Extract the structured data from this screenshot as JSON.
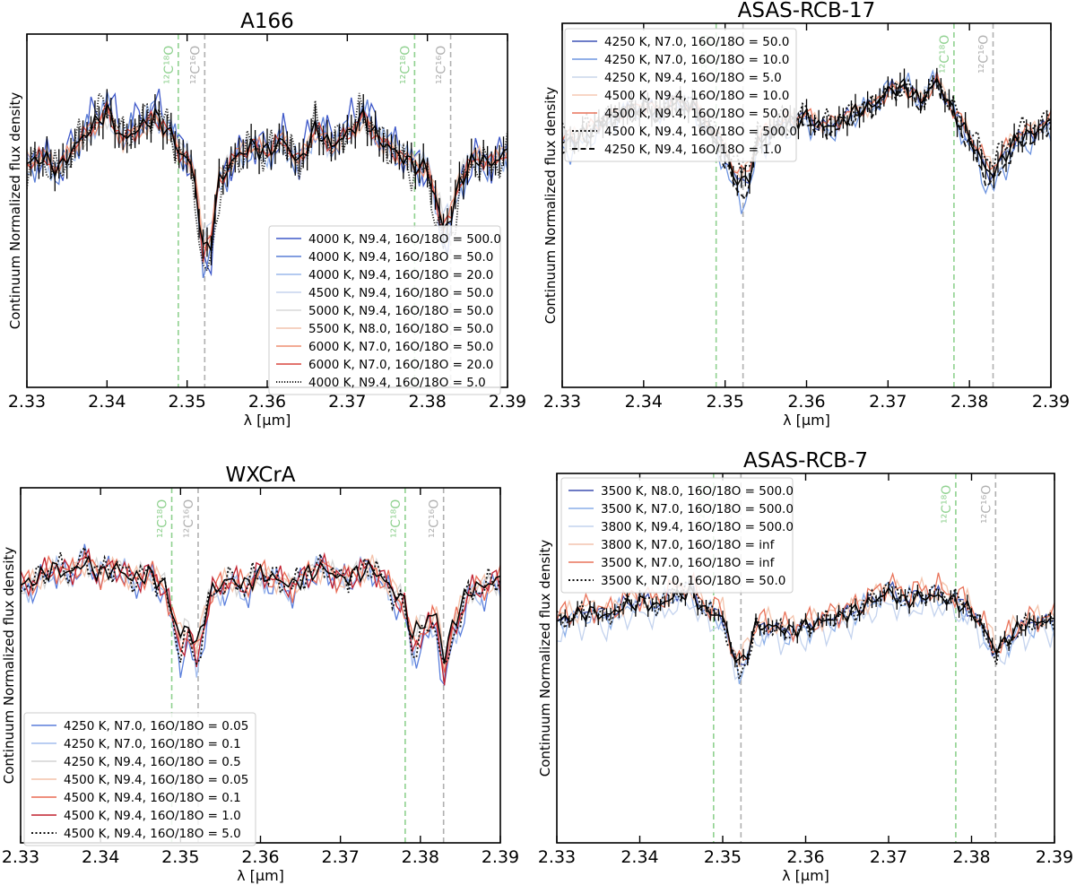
{
  "chart_data": [
    {
      "type": "line",
      "title": "A166",
      "xlabel": "λ [µm]",
      "ylabel": "Continuum Normalized flux density",
      "xlim": [
        2.33,
        2.39
      ],
      "xticks": [
        "2.33",
        "2.34",
        "2.35",
        "2.36",
        "2.37",
        "2.38",
        "2.39"
      ],
      "legend_position": "lower right",
      "line_markers": [
        {
          "label": "¹²C¹⁸O",
          "x": 2.3489,
          "color": "#8fd18f"
        },
        {
          "label": "¹²C¹⁶O",
          "x": 2.3522,
          "color": "#b0b0b0"
        },
        {
          "label": "¹²C¹⁸O",
          "x": 2.3784,
          "color": "#8fd18f"
        },
        {
          "label": "¹²C¹⁶O",
          "x": 2.3829,
          "color": "#b0b0b0"
        }
      ],
      "observed": {
        "x": [
          2.33,
          2.332,
          2.334,
          2.336,
          2.338,
          2.34,
          2.342,
          2.344,
          2.346,
          2.348,
          2.349,
          2.35,
          2.351,
          2.352,
          2.353,
          2.354,
          2.356,
          2.358,
          2.36,
          2.362,
          2.364,
          2.366,
          2.368,
          2.37,
          2.372,
          2.374,
          2.376,
          2.378,
          2.38,
          2.382,
          2.383,
          2.384,
          2.386,
          2.388,
          2.39
        ],
        "y": [
          0.93,
          0.94,
          0.92,
          0.96,
          0.99,
          1.02,
          0.97,
          0.99,
          1.01,
          0.98,
          0.95,
          0.94,
          0.9,
          0.78,
          0.8,
          0.9,
          0.94,
          0.96,
          0.95,
          0.97,
          0.93,
          0.99,
          0.96,
          0.98,
          1.01,
          0.97,
          0.95,
          0.93,
          0.92,
          0.82,
          0.84,
          0.9,
          0.94,
          0.93,
          0.95
        ],
        "yerr": 0.025
      },
      "series": [
        {
          "name": "4000 K, N9.4, 16O/18O = 500.0",
          "color": "#3e58c9",
          "dash": "solid",
          "offset": 0.01,
          "depth": 1.2,
          "jitter": 0.04,
          "phase": 1
        },
        {
          "name": "4000 K, N9.4, 16O/18O = 50.0",
          "color": "#5a7ed6",
          "dash": "solid",
          "offset": 0.0,
          "depth": 1.1,
          "jitter": 0.035,
          "phase": 2
        },
        {
          "name": "4000 K, N9.4, 16O/18O = 20.0",
          "color": "#9bb8ec",
          "dash": "solid",
          "offset": 0.0,
          "depth": 1.0,
          "jitter": 0.03,
          "phase": 3
        },
        {
          "name": "4500 K, N9.4, 16O/18O = 50.0",
          "color": "#c5d4ee",
          "dash": "solid",
          "offset": 0.0,
          "depth": 0.9,
          "jitter": 0.025,
          "phase": 4
        },
        {
          "name": "5000 K, N9.4, 16O/18O = 50.0",
          "color": "#d9d9d9",
          "dash": "solid",
          "offset": 0.0,
          "depth": 0.9,
          "jitter": 0.025,
          "phase": 5
        },
        {
          "name": "5500 K, N8.0, 16O/18O = 50.0",
          "color": "#f2c3ad",
          "dash": "solid",
          "offset": 0.0,
          "depth": 0.9,
          "jitter": 0.02,
          "phase": 6
        },
        {
          "name": "6000 K, N7.0, 16O/18O = 50.0",
          "color": "#ee8f72",
          "dash": "solid",
          "offset": 0.0,
          "depth": 0.95,
          "jitter": 0.02,
          "phase": 7
        },
        {
          "name": "6000 K, N7.0, 16O/18O = 20.0",
          "color": "#d9473e",
          "dash": "solid",
          "offset": 0.0,
          "depth": 1.0,
          "jitter": 0.02,
          "phase": 8
        },
        {
          "name": "4000 K, N9.4, 16O/18O = 5.0",
          "color": "#222222",
          "dash": "dotted-fine",
          "offset": 0.0,
          "depth": 1.25,
          "jitter": 0.04,
          "phase": 9
        }
      ]
    },
    {
      "type": "line",
      "title": "ASAS-RCB-17",
      "xlabel": "λ [µm]",
      "ylabel": "Continuum Normalized flux density",
      "xlim": [
        2.33,
        2.39
      ],
      "xticks": [
        "2.33",
        "2.34",
        "2.35",
        "2.36",
        "2.37",
        "2.38",
        "2.39"
      ],
      "legend_position": "upper left",
      "line_markers": [
        {
          "label": "¹²C¹⁸O",
          "x": 2.3489,
          "color": "#8fd18f"
        },
        {
          "label": "¹²C¹⁶O",
          "x": 2.3522,
          "color": "#b0b0b0"
        },
        {
          "label": "¹²C¹⁸O",
          "x": 2.3781,
          "color": "#8fd18f"
        },
        {
          "label": "¹²C¹⁶O",
          "x": 2.3829,
          "color": "#b0b0b0"
        }
      ],
      "observed": {
        "x": [
          2.33,
          2.332,
          2.334,
          2.336,
          2.338,
          2.34,
          2.342,
          2.344,
          2.346,
          2.348,
          2.35,
          2.351,
          2.352,
          2.353,
          2.354,
          2.356,
          2.358,
          2.36,
          2.362,
          2.364,
          2.366,
          2.368,
          2.37,
          2.372,
          2.374,
          2.376,
          2.378,
          2.38,
          2.382,
          2.383,
          2.384,
          2.386,
          2.388,
          2.39
        ],
        "y": [
          0.92,
          0.93,
          0.95,
          0.97,
          0.98,
          0.99,
          0.98,
          1.0,
          0.99,
          0.95,
          0.9,
          0.86,
          0.84,
          0.86,
          0.92,
          0.95,
          0.96,
          0.97,
          0.95,
          0.96,
          0.98,
          0.99,
          1.02,
          1.03,
          1.0,
          1.04,
          0.98,
          0.93,
          0.87,
          0.86,
          0.89,
          0.93,
          0.94,
          0.96
        ],
        "yerr": 0.02
      },
      "series": [
        {
          "name": "4250 K, N7.0, 16O/18O = 50.0",
          "color": "#3d52b5",
          "dash": "solid",
          "offset": 0.0,
          "depth": 1.0,
          "jitter": 0.02,
          "phase": 1
        },
        {
          "name": "4250 K, N7.0, 16O/18O = 10.0",
          "color": "#6f95e0",
          "dash": "solid",
          "offset": -0.01,
          "depth": 1.2,
          "jitter": 0.03,
          "phase": 2
        },
        {
          "name": "4250 K, N9.4, 16O/18O = 5.0",
          "color": "#c9d6ea",
          "dash": "solid",
          "offset": 0.0,
          "depth": 1.0,
          "jitter": 0.02,
          "phase": 3
        },
        {
          "name": "4500 K, N9.4, 16O/18O = 10.0",
          "color": "#f5c9b3",
          "dash": "solid",
          "offset": 0.005,
          "depth": 0.9,
          "jitter": 0.02,
          "phase": 4
        },
        {
          "name": "4500 K, N9.4, 16O/18O = 50.0",
          "color": "#e8745b",
          "dash": "solid",
          "offset": 0.005,
          "depth": 0.9,
          "jitter": 0.02,
          "phase": 5
        },
        {
          "name": "4500 K, N9.4, 16O/18O = 500.0",
          "color": "#111111",
          "dash": "dotted",
          "offset": 0.01,
          "depth": 0.85,
          "jitter": 0.025,
          "phase": 6
        },
        {
          "name": "4250 K, N9.4, 16O/18O = 1.0",
          "color": "#111111",
          "dash": "dashed",
          "offset": -0.01,
          "depth": 1.1,
          "jitter": 0.02,
          "phase": 7
        }
      ]
    },
    {
      "type": "line",
      "title": "WXCrA",
      "xlabel": "λ [µm]",
      "ylabel": "Continuum Normalized flux density",
      "xlim": [
        2.33,
        2.39
      ],
      "xticks": [
        "2.33",
        "2.34",
        "2.35",
        "2.36",
        "2.37",
        "2.38",
        "2.39"
      ],
      "legend_position": "lower left",
      "line_markers": [
        {
          "label": "¹²C¹⁸O",
          "x": 2.3489,
          "color": "#8fd18f"
        },
        {
          "label": "¹²C¹⁶O",
          "x": 2.3522,
          "color": "#b0b0b0"
        },
        {
          "label": "¹²C¹⁸O",
          "x": 2.3781,
          "color": "#8fd18f"
        },
        {
          "label": "¹²C¹⁶O",
          "x": 2.3829,
          "color": "#b0b0b0"
        }
      ],
      "observed": {
        "x": [
          2.33,
          2.332,
          2.334,
          2.336,
          2.338,
          2.34,
          2.342,
          2.344,
          2.346,
          2.348,
          2.349,
          2.35,
          2.351,
          2.352,
          2.353,
          2.354,
          2.356,
          2.358,
          2.36,
          2.362,
          2.364,
          2.366,
          2.368,
          2.37,
          2.372,
          2.374,
          2.376,
          2.378,
          2.379,
          2.38,
          2.382,
          2.383,
          2.384,
          2.386,
          2.388,
          2.39
        ],
        "y": [
          0.95,
          0.96,
          0.98,
          0.97,
          0.99,
          0.97,
          0.98,
          0.96,
          0.97,
          0.95,
          0.9,
          0.86,
          0.88,
          0.84,
          0.9,
          0.94,
          0.96,
          0.95,
          0.97,
          0.96,
          0.95,
          0.97,
          0.98,
          0.96,
          0.97,
          0.98,
          0.95,
          0.92,
          0.86,
          0.88,
          0.9,
          0.82,
          0.88,
          0.94,
          0.95,
          0.96
        ]
      },
      "series": [
        {
          "name": "4250 K, N7.0, 16O/18O = 0.05",
          "color": "#5b7fdc",
          "dash": "solid",
          "offset": -0.01,
          "depth": 1.3,
          "jitter": 0.035,
          "phase": 1
        },
        {
          "name": "4250 K, N7.0, 16O/18O = 0.1",
          "color": "#a3bdee",
          "dash": "solid",
          "offset": -0.005,
          "depth": 1.2,
          "jitter": 0.03,
          "phase": 2
        },
        {
          "name": "4250 K, N9.4, 16O/18O = 0.5",
          "color": "#d4d4d4",
          "dash": "solid",
          "offset": 0.0,
          "depth": 1.0,
          "jitter": 0.025,
          "phase": 3
        },
        {
          "name": "4500 K, N9.4, 16O/18O = 0.05",
          "color": "#f4c2aa",
          "dash": "solid",
          "offset": 0.0,
          "depth": 1.0,
          "jitter": 0.025,
          "phase": 4
        },
        {
          "name": "4500 K, N9.4, 16O/18O = 0.1",
          "color": "#ea6a53",
          "dash": "solid",
          "offset": 0.0,
          "depth": 1.15,
          "jitter": 0.03,
          "phase": 5
        },
        {
          "name": "4500 K, N9.4, 16O/18O = 1.0",
          "color": "#c0202f",
          "dash": "solid",
          "offset": 0.0,
          "depth": 1.2,
          "jitter": 0.03,
          "phase": 6
        },
        {
          "name": "4500 K, N9.4, 16O/18O = 5.0",
          "color": "#111111",
          "dash": "dotted",
          "offset": 0.0,
          "depth": 1.25,
          "jitter": 0.03,
          "phase": 7
        }
      ]
    },
    {
      "type": "line",
      "title": "ASAS-RCB-7",
      "xlabel": "λ [µm]",
      "ylabel": "Continuum Normalized flux density",
      "xlim": [
        2.33,
        2.39
      ],
      "xticks": [
        "2.33",
        "2.34",
        "2.35",
        "2.36",
        "2.37",
        "2.38",
        "2.39"
      ],
      "legend_position": "upper left",
      "line_markers": [
        {
          "label": "¹²C¹⁸O",
          "x": 2.3489,
          "color": "#8fd18f"
        },
        {
          "label": "¹²C¹⁶O",
          "x": 2.3522,
          "color": "#b0b0b0"
        },
        {
          "label": "¹²C¹⁸O",
          "x": 2.3781,
          "color": "#8fd18f"
        },
        {
          "label": "¹²C¹⁶O",
          "x": 2.3829,
          "color": "#b0b0b0"
        }
      ],
      "observed": {
        "x": [
          2.33,
          2.332,
          2.334,
          2.336,
          2.338,
          2.34,
          2.342,
          2.344,
          2.346,
          2.348,
          2.35,
          2.351,
          2.352,
          2.353,
          2.354,
          2.356,
          2.358,
          2.36,
          2.362,
          2.364,
          2.366,
          2.368,
          2.37,
          2.372,
          2.374,
          2.376,
          2.378,
          2.38,
          2.382,
          2.383,
          2.384,
          2.386,
          2.388,
          2.39
        ],
        "y": [
          0.95,
          0.96,
          0.97,
          0.96,
          0.98,
          0.99,
          0.98,
          1.0,
          1.01,
          0.97,
          0.96,
          0.9,
          0.86,
          0.89,
          0.94,
          0.94,
          0.93,
          0.94,
          0.95,
          0.96,
          0.97,
          0.99,
          1.01,
          0.99,
          1.0,
          1.0,
          0.99,
          0.97,
          0.92,
          0.89,
          0.91,
          0.94,
          0.95,
          0.95
        ],
        "yerr": 0.012
      },
      "series": [
        {
          "name": "3500 K, N8.0, 16O/18O = 500.0",
          "color": "#3d4fb0",
          "dash": "solid",
          "offset": 0.0,
          "depth": 1.1,
          "jitter": 0.02,
          "phase": 1
        },
        {
          "name": "3500 K, N7.0, 16O/18O = 500.0",
          "color": "#8aaee8",
          "dash": "solid",
          "offset": -0.005,
          "depth": 1.1,
          "jitter": 0.03,
          "phase": 2
        },
        {
          "name": "3800 K, N9.4, 16O/18O = 500.0",
          "color": "#c4d3ee",
          "dash": "solid",
          "offset": -0.02,
          "depth": 1.0,
          "jitter": 0.035,
          "phase": 3
        },
        {
          "name": "3800 K, N7.0, 16O/18O = inf",
          "color": "#f4c4ad",
          "dash": "solid",
          "offset": 0.01,
          "depth": 1.0,
          "jitter": 0.03,
          "phase": 4
        },
        {
          "name": "3500 K, N7.0, 16O/18O = inf",
          "color": "#e9735a",
          "dash": "solid",
          "offset": 0.01,
          "depth": 1.15,
          "jitter": 0.035,
          "phase": 5
        },
        {
          "name": "3500 K, N7.0, 16O/18O = 50.0",
          "color": "#111111",
          "dash": "dotted",
          "offset": 0.0,
          "depth": 1.2,
          "jitter": 0.025,
          "phase": 6
        }
      ]
    }
  ]
}
